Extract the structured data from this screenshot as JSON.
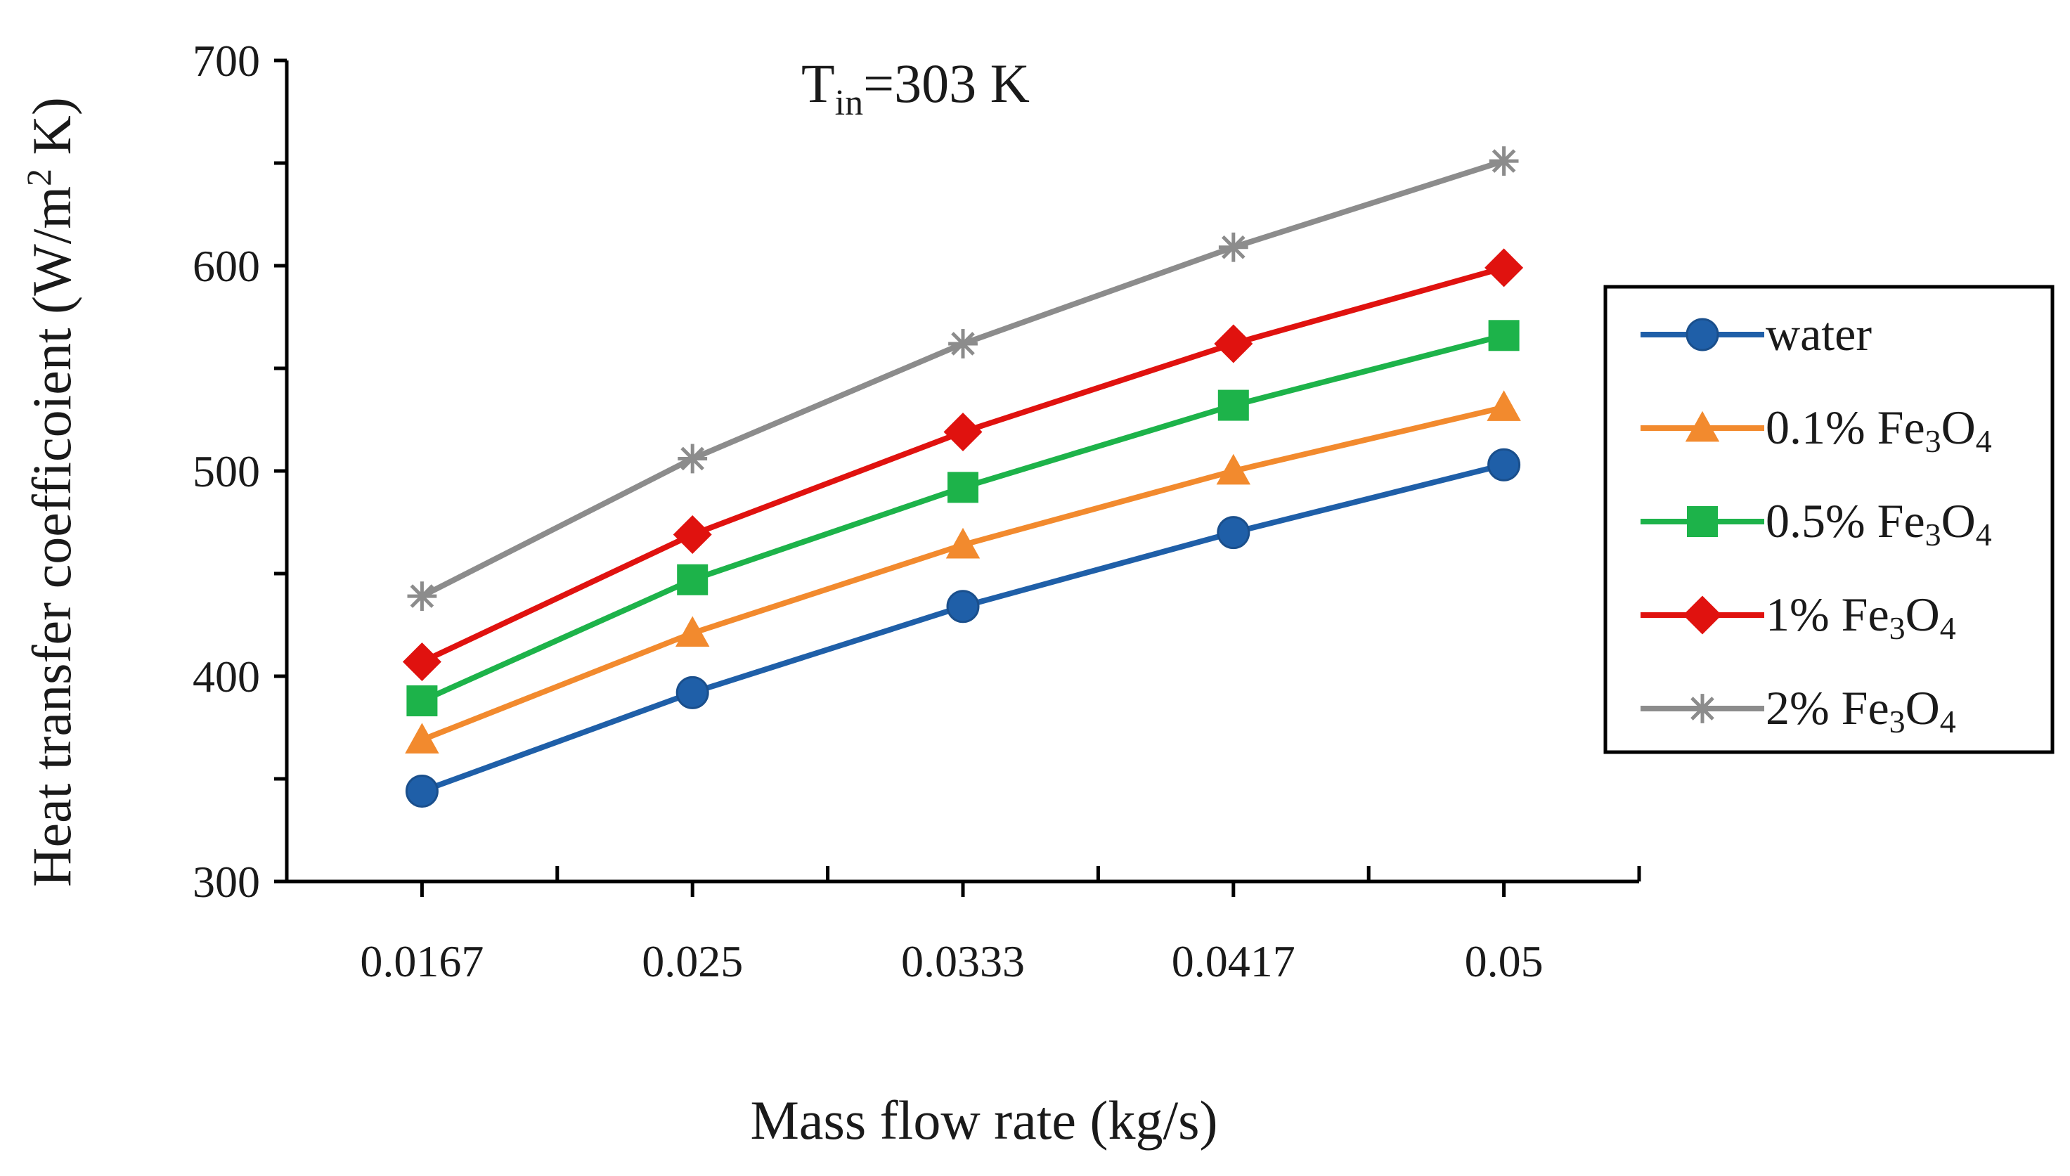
{
  "chart_data": {
    "type": "line",
    "title": {
      "main": "T",
      "sub": "in",
      "rest": "=303 K"
    },
    "xlabel": "Mass flow rate (kg/s)",
    "ylabel": {
      "main": "Heat transfer coefficoient (W/m",
      "sup": "2",
      "rest": " K)"
    },
    "categories": [
      "0.0167",
      "0.025",
      "0.0333",
      "0.0417",
      "0.05"
    ],
    "ylim": [
      300,
      700
    ],
    "yticks": [
      300,
      400,
      500,
      600,
      700
    ],
    "legend_position": "right",
    "series": [
      {
        "name": "water",
        "label": {
          "main": "water",
          "sub": "",
          "rest": ""
        },
        "color": "#1f5fa8",
        "marker": "circle",
        "values": [
          344,
          392,
          434,
          470,
          503
        ]
      },
      {
        "name": "0.1% Fe3O4",
        "label": {
          "main": "0.1% Fe",
          "sub": "3",
          "mid": "O",
          "sub2": "4"
        },
        "color": "#f28a2e",
        "marker": "triangle",
        "values": [
          369,
          421,
          464,
          500,
          531
        ]
      },
      {
        "name": "0.5% Fe3O4",
        "label": {
          "main": "0.5% Fe",
          "sub": "3",
          "mid": "O",
          "sub2": "4"
        },
        "color": "#1db34a",
        "marker": "square",
        "values": [
          388,
          447,
          492,
          532,
          566
        ]
      },
      {
        "name": "1% Fe3O4",
        "label": {
          "main": "1% Fe",
          "sub": "3",
          "mid": "O",
          "sub2": "4"
        },
        "color": "#e0120f",
        "marker": "diamond",
        "values": [
          407,
          469,
          519,
          562,
          599
        ]
      },
      {
        "name": "2% Fe3O4",
        "label": {
          "main": "2% Fe",
          "sub": "3",
          "mid": "O",
          "sub2": "4"
        },
        "color": "#8c8c8c",
        "marker": "star",
        "values": [
          439,
          506,
          562,
          609,
          651
        ]
      }
    ]
  }
}
